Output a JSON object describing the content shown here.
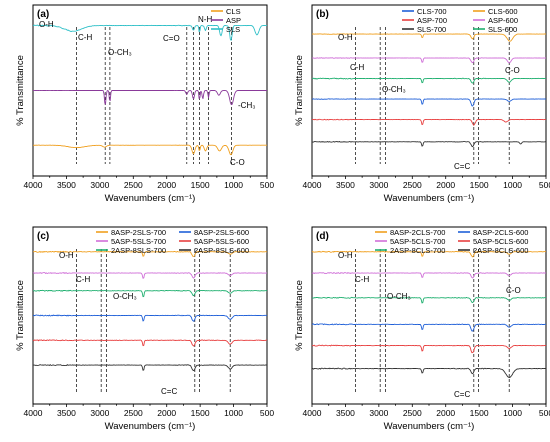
{
  "chart_data": [
    {
      "type": "line",
      "panel_label": "(a)",
      "xlabel": "Wavenumbers (cm⁻¹)",
      "ylabel": "% Transmittance",
      "xlim": [
        4000,
        500
      ],
      "x_reversed": true,
      "xticks": [
        4000,
        3500,
        3000,
        2500,
        2000,
        1500,
        1000,
        500
      ],
      "y_ticks_shown": false,
      "legend_position": "top-right",
      "legend_columns": 1,
      "series": [
        {
          "name": "CLS",
          "color": "#f0a020",
          "offset": 0.82,
          "noise": 0.2,
          "bands": [
            [
              3350,
              0.05,
              180
            ],
            [
              2930,
              0.04,
              40
            ],
            [
              1600,
              0.18,
              30
            ],
            [
              1510,
              0.12,
              15
            ],
            [
              1420,
              0.12,
              25
            ],
            [
              1210,
              0.12,
              40
            ],
            [
              1040,
              0.2,
              40
            ]
          ]
        },
        {
          "name": "ASP",
          "color": "#8a3a9a",
          "offset": 0.5,
          "noise": 0.2,
          "bands": [
            [
              2920,
              0.32,
              15
            ],
            [
              2850,
              0.25,
              12
            ],
            [
              1700,
              0.08,
              20
            ],
            [
              1600,
              0.18,
              20
            ],
            [
              1510,
              0.2,
              12
            ],
            [
              1460,
              0.18,
              15
            ],
            [
              1375,
              0.15,
              12
            ],
            [
              1220,
              0.1,
              30
            ],
            [
              1030,
              0.3,
              40
            ]
          ]
        },
        {
          "name": "SLS",
          "color": "#30c0c8",
          "offset": 0.12,
          "noise": 0.8,
          "bands": [
            [
              3400,
              0.12,
              180
            ],
            [
              1600,
              0.1,
              20
            ],
            [
              1510,
              0.15,
              12
            ],
            [
              1420,
              0.1,
              18
            ],
            [
              1190,
              0.22,
              25
            ],
            [
              1040,
              0.32,
              25
            ],
            [
              650,
              0.2,
              40
            ]
          ]
        }
      ],
      "annotations": [
        "O-H",
        "C-H",
        "O-CH₃",
        "C=O",
        "N-H",
        "-CH₃",
        "C-O"
      ],
      "guides": [
        3350,
        2920,
        2850,
        1700,
        1600,
        1510,
        1375,
        1030
      ]
    },
    {
      "type": "line",
      "panel_label": "(b)",
      "xlabel": "Wavenumbers (cm⁻¹)",
      "ylabel": "% Transmittance",
      "xlim": [
        4000,
        500
      ],
      "x_reversed": true,
      "xticks": [
        4000,
        3500,
        3000,
        2500,
        2000,
        1500,
        1000,
        500
      ],
      "y_ticks_shown": false,
      "legend_position": "top-right",
      "legend_columns": 2,
      "series": [
        {
          "name": "CLS-700",
          "color": "#2060d8",
          "offset": 0.55,
          "noise": 0.5,
          "bands": [
            [
              2350,
              0.12,
              15
            ],
            [
              1600,
              0.15,
              30
            ],
            [
              1050,
              0.05,
              40
            ]
          ]
        },
        {
          "name": "CLS-600",
          "color": "#f0a020",
          "offset": 0.17,
          "noise": 0.5,
          "bands": [
            [
              2350,
              0.08,
              15
            ],
            [
              1600,
              0.1,
              30
            ],
            [
              1040,
              0.15,
              60
            ]
          ]
        },
        {
          "name": "ASP-700",
          "color": "#e84040",
          "offset": 0.67,
          "noise": 0.5,
          "bands": [
            [
              2350,
              0.12,
              15
            ],
            [
              1580,
              0.12,
              30
            ],
            [
              1100,
              0.05,
              40
            ]
          ]
        },
        {
          "name": "ASP-600",
          "color": "#d070d8",
          "offset": 0.31,
          "noise": 0.5,
          "bands": [
            [
              2350,
              0.1,
              15
            ],
            [
              1600,
              0.1,
              30
            ],
            [
              1050,
              0.1,
              40
            ]
          ]
        },
        {
          "name": "SLS-700",
          "color": "#333333",
          "offset": 0.8,
          "noise": 0.6,
          "bands": [
            [
              2350,
              0.1,
              15
            ],
            [
              1600,
              0.1,
              30
            ],
            [
              880,
              0.05,
              20
            ]
          ]
        },
        {
          "name": "SLS-600",
          "color": "#20b070",
          "offset": 0.43,
          "noise": 0.8,
          "bands": [
            [
              2350,
              0.1,
              15
            ],
            [
              1600,
              0.1,
              30
            ],
            [
              1050,
              0.08,
              40
            ]
          ]
        }
      ],
      "annotations": [
        "O-H",
        "C-H",
        "O-CH₃",
        "C-O",
        "C=C"
      ],
      "guides": [
        3350,
        2980,
        2900,
        1580,
        1510,
        1050
      ]
    },
    {
      "type": "line",
      "panel_label": "(c)",
      "xlabel": "Wavenumbers (cm⁻¹)",
      "ylabel": "% Transmittance",
      "xlim": [
        4000,
        500
      ],
      "x_reversed": true,
      "xticks": [
        4000,
        3500,
        3000,
        2500,
        2000,
        1500,
        1000,
        500
      ],
      "y_ticks_shown": false,
      "legend_position": "top-right",
      "legend_columns": 2,
      "series": [
        {
          "name": "8ASP-2SLS-700",
          "color": "#f0a020",
          "offset": 0.14,
          "noise": 0.8,
          "bands": [
            [
              2350,
              0.1,
              15
            ],
            [
              1600,
              0.1,
              30
            ],
            [
              1050,
              0.05,
              40
            ]
          ]
        },
        {
          "name": "8ASP-2SLS-600",
          "color": "#2060d8",
          "offset": 0.5,
          "noise": 0.8,
          "bands": [
            [
              2350,
              0.12,
              15
            ],
            [
              1600,
              0.12,
              30
            ],
            [
              1050,
              0.08,
              40
            ]
          ]
        },
        {
          "name": "5ASP-5SLS-700",
          "color": "#d070d8",
          "offset": 0.26,
          "noise": 0.8,
          "bands": [
            [
              2350,
              0.12,
              15
            ],
            [
              1600,
              0.1,
              30
            ],
            [
              1050,
              0.05,
              40
            ]
          ]
        },
        {
          "name": "5ASP-5SLS-600",
          "color": "#e84040",
          "offset": 0.64,
          "noise": 0.8,
          "bands": [
            [
              2350,
              0.12,
              15
            ],
            [
              1600,
              0.12,
              30
            ],
            [
              1050,
              0.08,
              40
            ]
          ]
        },
        {
          "name": "2ASP-8SLS-700",
          "color": "#20b070",
          "offset": 0.36,
          "noise": 0.8,
          "bands": [
            [
              2350,
              0.14,
              15
            ],
            [
              1600,
              0.1,
              30
            ],
            [
              1050,
              0.05,
              40
            ]
          ]
        },
        {
          "name": "2ASP-8SLS-600",
          "color": "#333333",
          "offset": 0.78,
          "noise": 0.8,
          "bands": [
            [
              2350,
              0.12,
              15
            ],
            [
              1600,
              0.12,
              30
            ],
            [
              1050,
              0.08,
              40
            ]
          ]
        }
      ],
      "annotations": [
        "O-H",
        "C-H",
        "O-CH₃",
        "C=C"
      ],
      "guides": [
        3350,
        2980,
        2900,
        1580,
        1510,
        1050
      ]
    },
    {
      "type": "line",
      "panel_label": "(d)",
      "xlabel": "Wavenumbers (cm⁻¹)",
      "ylabel": "% Transmittance",
      "xlim": [
        4000,
        500
      ],
      "x_reversed": true,
      "xticks": [
        4000,
        3500,
        3000,
        2500,
        2000,
        1500,
        1000,
        500
      ],
      "y_ticks_shown": false,
      "legend_position": "top-right",
      "legend_columns": 2,
      "series": [
        {
          "name": "8ASP-2CLS-700",
          "color": "#f0a020",
          "offset": 0.14,
          "noise": 0.8,
          "bands": [
            [
              2350,
              0.1,
              15
            ],
            [
              1600,
              0.1,
              30
            ],
            [
              1050,
              0.05,
              40
            ]
          ]
        },
        {
          "name": "8ASP-2CLS-600",
          "color": "#2060d8",
          "offset": 0.55,
          "noise": 0.8,
          "bands": [
            [
              2350,
              0.12,
              15
            ],
            [
              1600,
              0.14,
              30
            ],
            [
              1050,
              0.06,
              40
            ]
          ]
        },
        {
          "name": "5ASP-5CLS-700",
          "color": "#d070d8",
          "offset": 0.26,
          "noise": 0.8,
          "bands": [
            [
              2350,
              0.1,
              15
            ],
            [
              1600,
              0.1,
              30
            ],
            [
              1050,
              0.05,
              40
            ]
          ]
        },
        {
          "name": "5ASP-5CLS-600",
          "color": "#e84040",
          "offset": 0.67,
          "noise": 0.8,
          "bands": [
            [
              2350,
              0.12,
              15
            ],
            [
              1600,
              0.15,
              30
            ],
            [
              1050,
              0.06,
              40
            ]
          ]
        },
        {
          "name": "2ASP-8CLS-700",
          "color": "#20b070",
          "offset": 0.4,
          "noise": 0.8,
          "bands": [
            [
              2350,
              0.12,
              15
            ],
            [
              1600,
              0.1,
              30
            ],
            [
              1050,
              0.05,
              40
            ]
          ]
        },
        {
          "name": "2ASP-8CLS-600",
          "color": "#333333",
          "offset": 0.8,
          "noise": 0.8,
          "bands": [
            [
              2350,
              0.1,
              15
            ],
            [
              1600,
              0.1,
              30
            ],
            [
              1050,
              0.18,
              70
            ]
          ]
        }
      ],
      "annotations": [
        "O-H",
        "C-H",
        "O-CH₃",
        "C-O",
        "C=C"
      ],
      "guides": [
        3350,
        2980,
        2900,
        1580,
        1510,
        1050
      ]
    }
  ]
}
